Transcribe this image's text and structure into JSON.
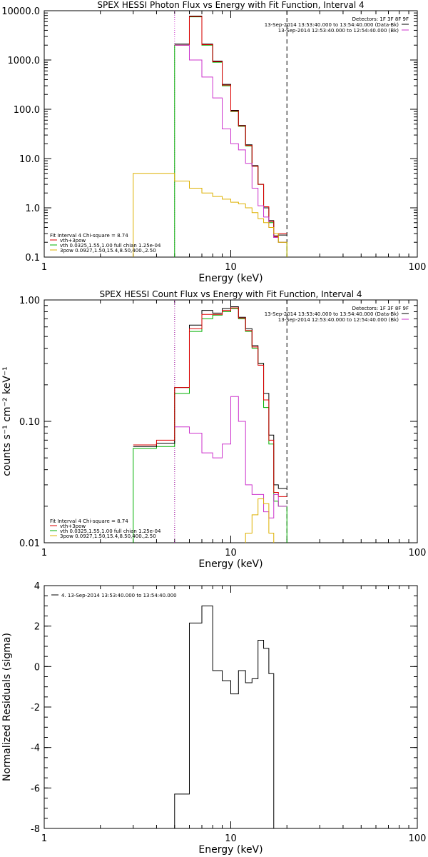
{
  "chart_data": [
    {
      "type": "line",
      "step": true,
      "title": "SPEX HESSI Photon Flux vs Energy with Fit Function, Interval 4",
      "xlabel": "Energy (keV)",
      "ylabel": "",
      "xscale": "log",
      "yscale": "log",
      "xlim": [
        1,
        100
      ],
      "ylim": [
        0.1,
        10000
      ],
      "xticks": [
        {
          "v": 1,
          "label": "1"
        },
        {
          "v": 10,
          "label": "10"
        },
        {
          "v": 100,
          "label": "100"
        }
      ],
      "yticks": [
        {
          "v": 0.1,
          "label": "0.1"
        },
        {
          "v": 1,
          "label": "1.0"
        },
        {
          "v": 10,
          "label": "10.0"
        },
        {
          "v": 100,
          "label": "100.0"
        },
        {
          "v": 1000,
          "label": "1000.0"
        },
        {
          "v": 10000,
          "label": "10000.0"
        }
      ],
      "edges": [
        3.0,
        5.0,
        6.0,
        7.0,
        8.0,
        9.0,
        10.0,
        11.0,
        12.0,
        13.0,
        14.0,
        15.0,
        16.0,
        17.0,
        18.0,
        20.0
      ],
      "vlines": [
        {
          "x": 5.0,
          "color": "#cc33cc",
          "dash": "dotted"
        },
        {
          "x": 20.0,
          "color": "#000000",
          "dash": "dashed"
        }
      ],
      "series": [
        {
          "name": "",
          "color": "#00b000",
          "tail_down": true,
          "values": [
            null,
            2000,
            7500,
            2000,
            900,
            300,
            90,
            45,
            18,
            7.0,
            3.0,
            1.0,
            0.5,
            0.25,
            0.2
          ]
        },
        {
          "name": "",
          "color": "#000000",
          "values": [
            null,
            2100,
            7800,
            2100,
            950,
            320,
            95,
            47,
            19,
            7.2,
            3.0,
            1.0,
            0.55,
            0.27,
            0.28
          ]
        },
        {
          "name": "",
          "color": "#dd0000",
          "values": [
            null,
            2000,
            7600,
            2050,
            920,
            310,
            92,
            46,
            18.5,
            7.0,
            3.0,
            1.05,
            0.53,
            0.26,
            0.3
          ]
        },
        {
          "name": "",
          "color": "#cc33cc",
          "values": [
            null,
            2000,
            1000,
            450,
            170,
            40,
            20,
            15,
            8.0,
            2.5,
            1.1,
            0.65,
            0.4,
            0.25,
            0.2
          ]
        },
        {
          "name": "",
          "color": "#ddb000",
          "tail_down": true,
          "values": [
            5.0,
            3.5,
            2.5,
            2.0,
            1.7,
            1.5,
            1.3,
            1.2,
            1.0,
            0.8,
            0.6,
            0.5,
            0.4,
            0.3,
            0.2
          ]
        }
      ],
      "legend_tr": {
        "header": "Detectors: 1F 3F 8F 9F",
        "entries": [
          {
            "text": "13-Sep-2014 13:53:40.000 to 13:54:40.000 (Data-Bk)",
            "color": "#000000"
          },
          {
            "text": "13-Sep-2014 12:53:40.000 to 12:54:40.000 (Bk)",
            "color": "#cc33cc"
          }
        ]
      },
      "legend_bl": {
        "header": "Fit Interval  4    Chi-square = 8.74",
        "entries": [
          {
            "text": "vth+3pow",
            "color": "#dd0000"
          },
          {
            "text": "vth 0.0325,1.55,1.00  full chian 1.25e-04",
            "color": "#00b000"
          },
          {
            "text": "3pow 0.0927,1.50,15.4,8.50,400.,2.50",
            "color": "#ddb000"
          }
        ]
      }
    },
    {
      "type": "line",
      "step": true,
      "title": "SPEX HESSI Count Flux vs Energy with Fit Function, Interval 4",
      "xlabel": "Energy (keV)",
      "ylabel": "counts s⁻¹ cm⁻² keV⁻¹",
      "xscale": "log",
      "yscale": "log",
      "xlim": [
        1,
        100
      ],
      "ylim": [
        0.01,
        1.0
      ],
      "xticks": [
        {
          "v": 1,
          "label": "1"
        },
        {
          "v": 10,
          "label": "10"
        },
        {
          "v": 100,
          "label": "100"
        }
      ],
      "yticks": [
        {
          "v": 0.01,
          "label": "0.01"
        },
        {
          "v": 0.1,
          "label": "0.10"
        },
        {
          "v": 1.0,
          "label": "1.00"
        }
      ],
      "edges": [
        3.0,
        4.0,
        5.0,
        6.0,
        7.0,
        8.0,
        9.0,
        10.0,
        11.0,
        12.0,
        13.0,
        14.0,
        15.0,
        16.0,
        17.0,
        18.0,
        20.0
      ],
      "vlines": [
        {
          "x": 5.0,
          "color": "#000000",
          "dash": "dotted"
        },
        {
          "x": 5.0,
          "color": "#cc33cc",
          "dash": "dotted"
        },
        {
          "x": 20.0,
          "color": "#000000",
          "dash": "dashed"
        }
      ],
      "series": [
        {
          "name": "",
          "color": "#00b000",
          "tail_down": true,
          "values": [
            0.06,
            0.062,
            0.17,
            0.55,
            0.7,
            0.75,
            0.8,
            0.85,
            0.7,
            0.55,
            0.4,
            0.3,
            0.13,
            0.065,
            0.022,
            0.02
          ]
        },
        {
          "name": "",
          "color": "#000000",
          "values": [
            0.062,
            0.066,
            0.19,
            0.62,
            0.82,
            0.78,
            0.85,
            0.88,
            0.72,
            0.58,
            0.42,
            0.3,
            0.17,
            0.077,
            0.03,
            0.028
          ]
        },
        {
          "name": "",
          "color": "#dd0000",
          "values": [
            0.064,
            0.07,
            0.19,
            0.58,
            0.76,
            0.76,
            0.82,
            0.86,
            0.71,
            0.56,
            0.41,
            0.29,
            0.15,
            0.07,
            0.026,
            0.024
          ]
        },
        {
          "name": "",
          "color": "#cc33cc",
          "values": [
            null,
            null,
            0.09,
            0.08,
            0.055,
            0.05,
            0.065,
            0.16,
            0.1,
            0.03,
            0.025,
            0.025,
            0.018,
            0.016,
            0.025,
            0.02
          ]
        },
        {
          "name": "",
          "color": "#ddb000",
          "tail_down": true,
          "values": [
            null,
            null,
            null,
            null,
            null,
            null,
            null,
            null,
            null,
            0.012,
            0.017,
            0.023,
            0.021,
            0.012,
            null,
            null
          ]
        }
      ],
      "legend_tr": {
        "header": "Detectors: 1F 3F 8F 9F",
        "entries": [
          {
            "text": "13-Sep-2014 13:53:40.000 to 13:54:40.000 (Data-Bk)",
            "color": "#000000"
          },
          {
            "text": "13-Sep-2014 12:53:40.000 to 12:54:40.000 (Bk)",
            "color": "#cc33cc"
          }
        ]
      },
      "legend_bl": {
        "header": "Fit Interval  4    Chi-square = 8.74",
        "entries": [
          {
            "text": "vth+3pow",
            "color": "#dd0000"
          },
          {
            "text": "vth 0.0325,1.55,1.00  full chian 1.25e-04",
            "color": "#00b000"
          },
          {
            "text": "3pow 0.0927,1.50,15.4,8.50,400.,2.50",
            "color": "#ddb000"
          }
        ]
      }
    },
    {
      "type": "line",
      "step": true,
      "title": "",
      "xlabel": "Energy (keV)",
      "ylabel": "Normalized Residuals (sigma)",
      "xscale": "log",
      "yscale": "linear",
      "xlim": [
        1,
        100
      ],
      "ylim": [
        -8,
        4
      ],
      "xticks": [
        {
          "v": 1,
          "label": "1"
        },
        {
          "v": 10,
          "label": "10"
        },
        {
          "v": 100,
          "label": "100"
        }
      ],
      "yticks": [
        {
          "v": -8,
          "label": "-8"
        },
        {
          "v": -6,
          "label": "-6"
        },
        {
          "v": -4,
          "label": "-4"
        },
        {
          "v": -2,
          "label": "-2"
        },
        {
          "v": 0,
          "label": "0"
        },
        {
          "v": 2,
          "label": "2"
        },
        {
          "v": 4,
          "label": "4"
        }
      ],
      "edges": [
        5.0,
        6.0,
        7.0,
        8.0,
        9.0,
        10.0,
        11.0,
        12.0,
        13.0,
        14.0,
        15.0,
        16.0,
        17.0,
        18.0,
        20.0
      ],
      "vlines": [],
      "series": [
        {
          "name": "",
          "color": "#000000",
          "down_to_floor": true,
          "values": [
            -6.3,
            2.15,
            3.0,
            -0.2,
            -0.7,
            -1.35,
            -0.2,
            -0.8,
            -0.6,
            1.3,
            0.9,
            -0.35,
            null,
            null
          ]
        }
      ],
      "legend_tl": {
        "entries": [
          {
            "text": "4. 13-Sep-2014 13:53:40.000 to 13:54:40.000",
            "color": "#000000"
          }
        ]
      }
    }
  ]
}
